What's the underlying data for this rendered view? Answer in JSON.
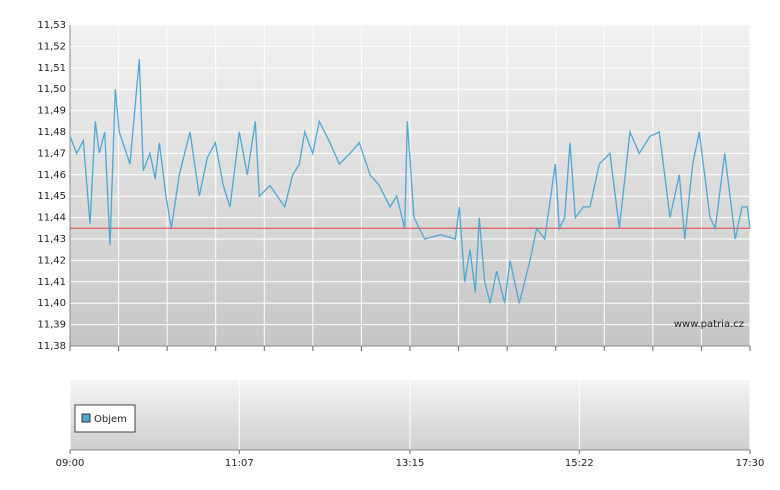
{
  "chart_data": {
    "type": "line",
    "x": [
      "09:00",
      "09:05",
      "09:10",
      "09:15",
      "09:19",
      "09:22",
      "09:26",
      "09:30",
      "09:34",
      "09:37",
      "09:45",
      "09:52",
      "09:55",
      "10:00",
      "10:04",
      "10:07",
      "10:12",
      "10:16",
      "10:22",
      "10:30",
      "10:37",
      "10:43",
      "10:49",
      "10:55",
      "11:00",
      "11:07",
      "11:13",
      "11:19",
      "11:22",
      "11:30",
      "11:41",
      "11:47",
      "11:52",
      "11:56",
      "12:02",
      "12:07",
      "12:15",
      "12:22",
      "12:30",
      "12:37",
      "12:45",
      "12:52",
      "13:00",
      "13:05",
      "13:11",
      "13:13",
      "13:18",
      "13:22",
      "13:26",
      "13:38",
      "13:49",
      "13:52",
      "13:56",
      "14:00",
      "14:04",
      "14:07",
      "14:11",
      "14:15",
      "14:20",
      "14:26",
      "14:30",
      "14:37",
      "14:45",
      "14:50",
      "14:56",
      "15:04",
      "15:07",
      "15:11",
      "15:15",
      "15:19",
      "15:25",
      "15:30",
      "15:37",
      "15:45",
      "15:52",
      "16:00",
      "16:07",
      "16:15",
      "16:22",
      "16:30",
      "16:37",
      "16:41",
      "16:47",
      "16:52",
      "17:00",
      "17:04",
      "17:11",
      "17:19",
      "17:24",
      "17:28",
      "17:30"
    ],
    "values": [
      11.478,
      11.47,
      11.476,
      11.437,
      11.485,
      11.47,
      11.48,
      11.427,
      11.5,
      11.48,
      11.465,
      11.514,
      11.462,
      11.47,
      11.458,
      11.475,
      11.45,
      11.435,
      11.46,
      11.48,
      11.45,
      11.468,
      11.475,
      11.455,
      11.445,
      11.48,
      11.46,
      11.485,
      11.45,
      11.455,
      11.445,
      11.46,
      11.465,
      11.48,
      11.47,
      11.485,
      11.475,
      11.465,
      11.47,
      11.475,
      11.46,
      11.455,
      11.445,
      11.45,
      11.435,
      11.485,
      11.44,
      11.435,
      11.43,
      11.432,
      11.43,
      11.445,
      11.41,
      11.425,
      11.405,
      11.44,
      11.41,
      11.4,
      11.415,
      11.4,
      11.42,
      11.4,
      11.42,
      11.435,
      11.43,
      11.465,
      11.435,
      11.44,
      11.475,
      11.44,
      11.445,
      11.445,
      11.465,
      11.47,
      11.435,
      11.48,
      11.47,
      11.478,
      11.48,
      11.44,
      11.46,
      11.43,
      11.465,
      11.48,
      11.44,
      11.435,
      11.47,
      11.43,
      11.445,
      11.445,
      11.435
    ],
    "color": "#4fa8d2",
    "xlim": [
      "09:00",
      "17:30"
    ],
    "xticks": [
      "09:00",
      "11:07",
      "13:15",
      "15:22",
      "17:30"
    ],
    "ylim": [
      11.38,
      11.53
    ],
    "yticks": [
      {
        "value": 11.38,
        "label": "11,38"
      },
      {
        "value": 11.39,
        "label": "11,39"
      },
      {
        "value": 11.4,
        "label": "11,40"
      },
      {
        "value": 11.41,
        "label": "11,41"
      },
      {
        "value": 11.42,
        "label": "11,42"
      },
      {
        "value": 11.43,
        "label": "11,43"
      },
      {
        "value": 11.44,
        "label": "11,44"
      },
      {
        "value": 11.45,
        "label": "11,45"
      },
      {
        "value": 11.46,
        "label": "11,46"
      },
      {
        "value": 11.47,
        "label": "11,47"
      },
      {
        "value": 11.48,
        "label": "11,48"
      },
      {
        "value": 11.49,
        "label": "11,49"
      },
      {
        "value": 11.5,
        "label": "11,50"
      },
      {
        "value": 11.51,
        "label": "11,51"
      },
      {
        "value": 11.52,
        "label": "11,52"
      },
      {
        "value": 11.53,
        "label": "11,53"
      }
    ],
    "grid": true,
    "reference_line": {
      "value": 11.435,
      "color": "#e04040"
    },
    "watermark": "www.patria.cz",
    "volume": {
      "name": "Objem",
      "color": "#4fa8d2"
    }
  }
}
